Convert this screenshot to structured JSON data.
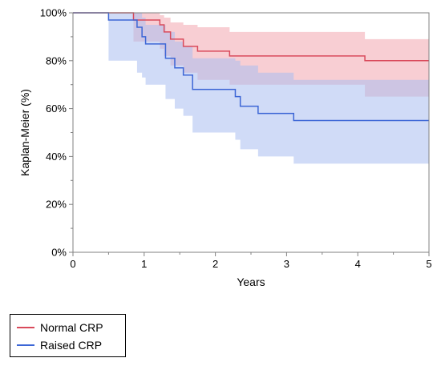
{
  "chart_data": {
    "type": "line",
    "title": "",
    "xlabel": "Years",
    "ylabel": "Kaplan-Meier (%)",
    "xlim": [
      0,
      5
    ],
    "ylim": [
      0,
      100
    ],
    "x_ticks": [
      "0",
      "1",
      "2",
      "3",
      "4",
      "5"
    ],
    "y_ticks": [
      "0%",
      "20%",
      "40%",
      "60%",
      "80%",
      "100%"
    ],
    "grid": false,
    "legend_position": "bottom-left",
    "series": [
      {
        "name": "Normal CRP",
        "color": "#d94a5b",
        "band_color": "#f2a6ae",
        "step_x": [
          0,
          0.85,
          1.22,
          1.28,
          1.37,
          1.55,
          1.75,
          2.2,
          4.1,
          5
        ],
        "survival": [
          100,
          97,
          95,
          92,
          89,
          86,
          84,
          82,
          80,
          80
        ],
        "ci_lower": [
          100,
          88,
          85,
          82,
          78,
          75,
          72,
          70,
          65,
          65
        ],
        "ci_upper": [
          100,
          100,
          99,
          98,
          96,
          95,
          94,
          92,
          89,
          89
        ]
      },
      {
        "name": "Raised CRP",
        "color": "#3c66d6",
        "band_color": "#a9bdf0",
        "step_x": [
          0,
          0.5,
          0.9,
          0.97,
          1.02,
          1.3,
          1.43,
          1.55,
          1.68,
          2.28,
          2.35,
          2.6,
          3.1,
          5
        ],
        "survival": [
          100,
          97,
          94,
          90,
          87,
          81,
          77,
          74,
          68,
          65,
          61,
          58,
          55,
          55
        ],
        "ci_lower": [
          100,
          80,
          75,
          73,
          70,
          64,
          60,
          57,
          50,
          47,
          43,
          40,
          37,
          37
        ],
        "ci_upper": [
          100,
          100,
          100,
          98,
          95,
          92,
          88,
          86,
          81,
          80,
          78,
          75,
          72,
          72
        ]
      }
    ]
  }
}
